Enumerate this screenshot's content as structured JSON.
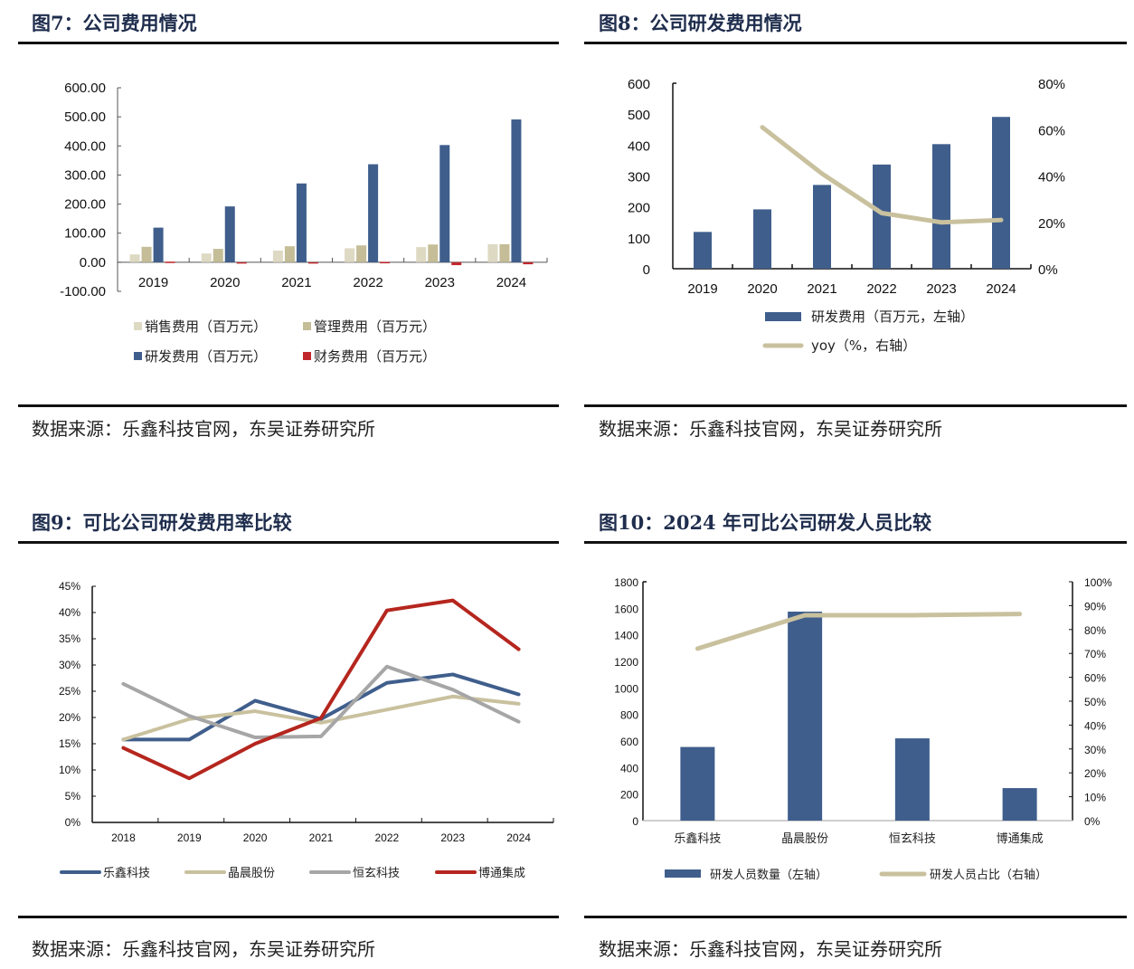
{
  "panels": [
    {
      "title": "图7：公司费用情况",
      "source": "数据来源：乐鑫科技官网，东吴证券研究所"
    },
    {
      "title": "图8：公司研发费用情况",
      "source": "数据来源：乐鑫科技官网，东吴证券研究所"
    },
    {
      "title": "图9：可比公司研发费用率比较",
      "source": "数据来源：乐鑫科技官网，东吴证券研究所"
    },
    {
      "title": "图10：2024 年可比公司研发人员比较",
      "source": "数据来源：乐鑫科技官网，东吴证券研究所"
    }
  ],
  "chart_data": [
    {
      "type": "bar",
      "title": "图7：公司费用情况",
      "categories": [
        "2019",
        "2020",
        "2021",
        "2022",
        "2023",
        "2024"
      ],
      "series": [
        {
          "name": "销售费用（百万元）",
          "color": "#ddd9c3",
          "values": [
            27,
            30,
            40,
            48,
            52,
            62
          ]
        },
        {
          "name": "管理费用（百万元）",
          "color": "#c4bd97",
          "values": [
            53,
            46,
            55,
            58,
            61,
            62
          ]
        },
        {
          "name": "研发费用（百万元）",
          "color": "#3f5e8c",
          "values": [
            119,
            192,
            271,
            337,
            403,
            491
          ]
        },
        {
          "name": "财务费用（百万元）",
          "color": "#c0272d",
          "values": [
            2,
            -1,
            -1,
            1,
            -10,
            -7
          ]
        }
      ],
      "ylim": [
        -100,
        600
      ],
      "yticks": [
        "600.00",
        "500.00",
        "400.00",
        "300.00",
        "200.00",
        "100.00",
        "0.00",
        "-100.00"
      ],
      "ytick_values": [
        600,
        500,
        400,
        300,
        200,
        100,
        0,
        -100
      ],
      "legend": "bottom"
    },
    {
      "type": "bar+line",
      "title": "图8：公司研发费用情况",
      "categories": [
        "2019",
        "2020",
        "2021",
        "2022",
        "2023",
        "2024"
      ],
      "series": [
        {
          "name": "研发费用（百万元，左轴）",
          "type": "bar",
          "axis": "left",
          "color": "#3f5e8c",
          "values": [
            119,
            192,
            271,
            337,
            403,
            491
          ]
        },
        {
          "name": "yoy（%，右轴）",
          "type": "line",
          "axis": "right",
          "color": "#c9c19e",
          "values": [
            null,
            61,
            41,
            24,
            20,
            21
          ]
        }
      ],
      "ylim_left": [
        0,
        600
      ],
      "ylim_right": [
        0,
        80
      ],
      "yticks_left": [
        "600",
        "500",
        "400",
        "300",
        "200",
        "100",
        "0"
      ],
      "ytick_values_left": [
        600,
        500,
        400,
        300,
        200,
        100,
        0
      ],
      "yticks_right": [
        "80%",
        "60%",
        "40%",
        "20%",
        "0%"
      ],
      "ytick_values_right": [
        80,
        60,
        40,
        20,
        0
      ],
      "legend": "bottom"
    },
    {
      "type": "line",
      "title": "图9：可比公司研发费用率比较",
      "categories": [
        "2018",
        "2019",
        "2020",
        "2021",
        "2022",
        "2023",
        "2024"
      ],
      "series": [
        {
          "name": "乐鑫科技",
          "color": "#3f5e8c",
          "values": [
            15.8,
            15.8,
            23.2,
            19.7,
            26.6,
            28.2,
            24.4
          ]
        },
        {
          "name": "晶晨股份",
          "color": "#c9c19e",
          "values": [
            15.8,
            19.7,
            21.2,
            19.0,
            21.5,
            24.0,
            22.6
          ]
        },
        {
          "name": "恒玄科技",
          "color": "#a6a6a6",
          "values": [
            26.4,
            20.3,
            16.2,
            16.4,
            29.7,
            25.3,
            19.2
          ]
        },
        {
          "name": "博通集成",
          "color": "#b5261e",
          "values": [
            14.2,
            8.4,
            15.0,
            19.9,
            40.4,
            42.3,
            33.0
          ]
        }
      ],
      "ylim": [
        0,
        45
      ],
      "yticks": [
        "45%",
        "40%",
        "35%",
        "30%",
        "25%",
        "20%",
        "15%",
        "10%",
        "5%",
        "0%"
      ],
      "ytick_values": [
        45,
        40,
        35,
        30,
        25,
        20,
        15,
        10,
        5,
        0
      ],
      "legend": "bottom"
    },
    {
      "type": "bar+line",
      "title": "图10：2024 年可比公司研发人员比较",
      "categories": [
        "乐鑫科技",
        "晶晨股份",
        "恒玄科技",
        "博通集成"
      ],
      "series": [
        {
          "name": "研发人员数量（左轴）",
          "type": "bar",
          "axis": "left",
          "color": "#3f5e8c",
          "values": [
            555,
            1575,
            620,
            245
          ]
        },
        {
          "name": "研发人员占比（右轴）",
          "type": "line",
          "axis": "right",
          "color": "#c9c19e",
          "values": [
            72,
            86,
            86,
            86.5
          ]
        }
      ],
      "ylim_left": [
        0,
        1800
      ],
      "ylim_right": [
        0,
        100
      ],
      "yticks_left": [
        "1800",
        "1600",
        "1400",
        "1200",
        "1000",
        "800",
        "600",
        "400",
        "200",
        "0"
      ],
      "ytick_values_left": [
        1800,
        1600,
        1400,
        1200,
        1000,
        800,
        600,
        400,
        200,
        0
      ],
      "yticks_right": [
        "100%",
        "90%",
        "80%",
        "70%",
        "60%",
        "50%",
        "40%",
        "30%",
        "20%",
        "10%",
        "0%"
      ],
      "ytick_values_right": [
        100,
        90,
        80,
        70,
        60,
        50,
        40,
        30,
        20,
        10,
        0
      ],
      "legend": "bottom"
    }
  ]
}
